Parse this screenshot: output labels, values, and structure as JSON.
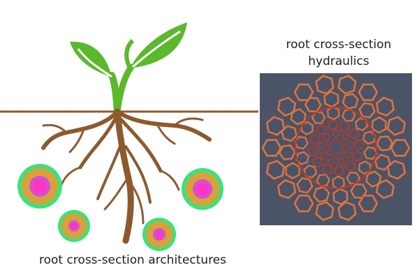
{
  "labels": {
    "hydraulics_line1": "root cross-section",
    "hydraulics_line2": "hydraulics",
    "architectures": "root cross-section architectures"
  },
  "colors": {
    "leaf": "#5cb82c",
    "leaf_dark": "#3f8f1e",
    "stem_root": "#8c5a2e",
    "ground_line": "#8c5a2e",
    "panel_bg": "#4b5366",
    "cell_wall": "#e0733e",
    "stele_wall": "#b83a2c",
    "xs_outer": "#3fe07a",
    "xs_cortex": "#d9a13a",
    "xs_inner": "#d24fd6",
    "xs_core": "#ff33c6"
  },
  "icons": [
    "plant-seedling-icon",
    "root-system-icon",
    "cross-section-mesh-icon"
  ]
}
